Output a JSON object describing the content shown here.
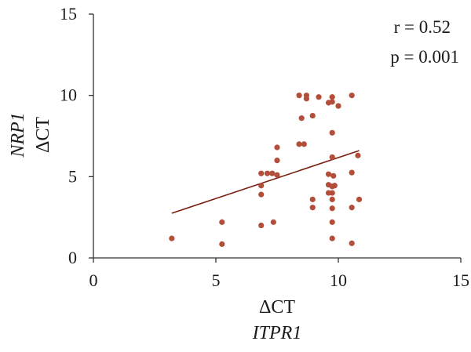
{
  "chart_data": {
    "type": "scatter",
    "title": "",
    "xlabel": [
      "ΔCT",
      "ITPR1"
    ],
    "ylabel": [
      "NRP1",
      "ΔCT"
    ],
    "xlim": [
      0,
      15
    ],
    "ylim": [
      0,
      15
    ],
    "xticks": [
      0,
      5,
      10,
      15
    ],
    "yticks": [
      0,
      5,
      10,
      15
    ],
    "grid": false,
    "legend": "none",
    "annotations": [
      "r = 0.52",
      "p = 0.001"
    ],
    "colors": {
      "points": "#b24e3a",
      "trendline": "#7a1f12"
    },
    "series": [
      {
        "points": [
          [
            3.2,
            1.2
          ],
          [
            5.25,
            2.2
          ],
          [
            5.25,
            0.85
          ],
          [
            6.85,
            5.2
          ],
          [
            6.85,
            4.45
          ],
          [
            6.85,
            3.9
          ],
          [
            6.85,
            2.0
          ],
          [
            7.1,
            5.2
          ],
          [
            7.3,
            5.2
          ],
          [
            7.35,
            2.2
          ],
          [
            7.5,
            6.8
          ],
          [
            7.5,
            6.0
          ],
          [
            7.5,
            5.1
          ],
          [
            8.4,
            10.0
          ],
          [
            8.4,
            7.0
          ],
          [
            8.5,
            8.6
          ],
          [
            8.6,
            7.0
          ],
          [
            8.7,
            10.0
          ],
          [
            8.7,
            9.8
          ],
          [
            8.95,
            8.75
          ],
          [
            8.95,
            3.6
          ],
          [
            8.95,
            3.1
          ],
          [
            9.2,
            9.9
          ],
          [
            9.6,
            9.55
          ],
          [
            9.6,
            5.15
          ],
          [
            9.6,
            4.5
          ],
          [
            9.6,
            4.0
          ],
          [
            9.75,
            9.9
          ],
          [
            9.75,
            9.6
          ],
          [
            9.75,
            7.7
          ],
          [
            9.75,
            6.2
          ],
          [
            9.75,
            4.4
          ],
          [
            9.75,
            4.0
          ],
          [
            9.75,
            3.6
          ],
          [
            9.75,
            3.05
          ],
          [
            9.75,
            2.2
          ],
          [
            9.75,
            1.2
          ],
          [
            9.8,
            5.05
          ],
          [
            9.85,
            4.45
          ],
          [
            10.0,
            9.35
          ],
          [
            10.55,
            10.0
          ],
          [
            10.55,
            5.25
          ],
          [
            10.55,
            3.1
          ],
          [
            10.55,
            0.9
          ],
          [
            10.8,
            6.3
          ],
          [
            10.85,
            3.6
          ]
        ]
      }
    ],
    "trendline": {
      "x": [
        3.2,
        10.85
      ],
      "y": [
        2.75,
        6.6
      ]
    }
  }
}
